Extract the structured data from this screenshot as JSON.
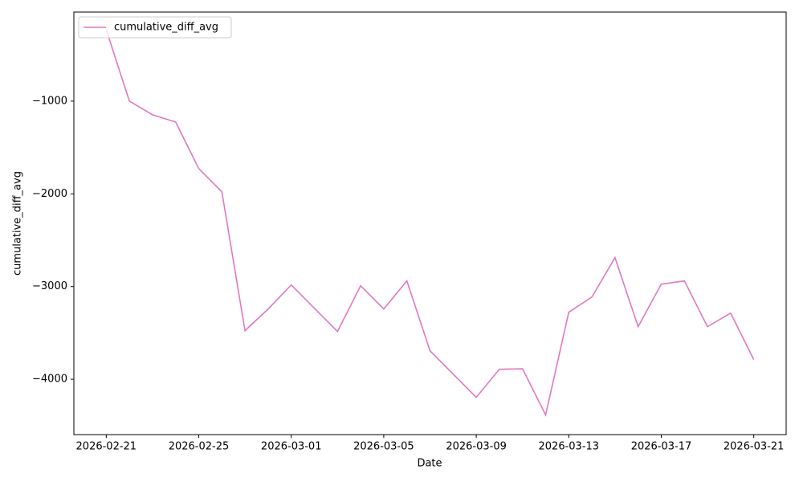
{
  "chart_data": {
    "type": "line",
    "x_label": "Date",
    "y_label": "cumulative_diff_avg",
    "x": [
      "2026-02-21",
      "2026-02-22",
      "2026-02-23",
      "2026-02-24",
      "2026-02-25",
      "2026-02-26",
      "2026-02-27",
      "2026-02-28",
      "2026-03-01",
      "2026-03-02",
      "2026-03-03",
      "2026-03-04",
      "2026-03-05",
      "2026-03-06",
      "2026-03-07",
      "2026-03-08",
      "2026-03-09",
      "2026-03-10",
      "2026-03-11",
      "2026-03-12",
      "2026-03-13",
      "2026-03-14",
      "2026-03-15",
      "2026-03-16",
      "2026-03-17",
      "2026-03-18",
      "2026-03-19",
      "2026-03-20",
      "2026-03-21"
    ],
    "series": [
      {
        "name": "cumulative_diff_avg",
        "color": "#e377c2",
        "values": [
          -230,
          -1000,
          -1147,
          -1225,
          -1727,
          -1978,
          -3476,
          -3242,
          -2983,
          -3234,
          -3485,
          -2991,
          -3242,
          -2939,
          -3693,
          -3944,
          -4195,
          -3892,
          -3887,
          -4385,
          -3277,
          -3113,
          -2688,
          -3433,
          -2974,
          -2939,
          -3433,
          -3286,
          -3788
        ]
      }
    ],
    "xlim": [
      "2026-02-19T14:24",
      "2026-03-22T09:36"
    ],
    "xticks": [
      "2026-02-21",
      "2026-02-25",
      "2026-03-01",
      "2026-03-05",
      "2026-03-09",
      "2026-03-13",
      "2026-03-17",
      "2026-03-21"
    ],
    "ylim": [
      -4597,
      -39
    ],
    "yticks": [
      {
        "value": -4000,
        "label": "−4000"
      },
      {
        "value": -3000,
        "label": "−3000"
      },
      {
        "value": -2000,
        "label": "−2000"
      },
      {
        "value": -1000,
        "label": "−1000"
      }
    ],
    "legend": "upper left",
    "grid": false
  }
}
